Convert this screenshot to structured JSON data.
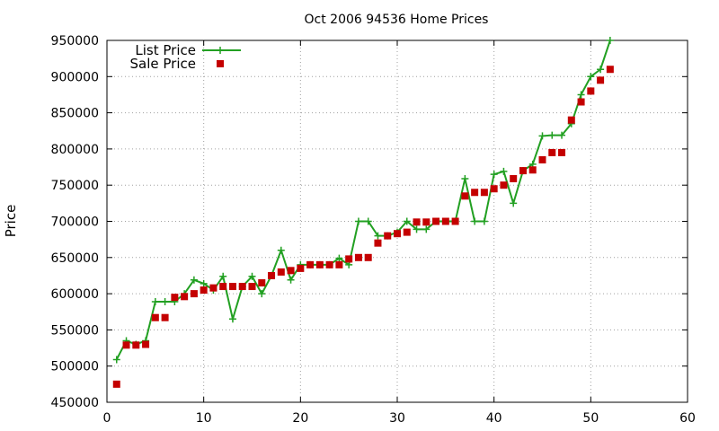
{
  "chart_data": {
    "type": "line",
    "title": "Oct 2006 94536 Home Prices",
    "xlabel": "",
    "ylabel": "Price",
    "xlim": [
      0,
      60
    ],
    "ylim": [
      450000,
      950000
    ],
    "xticks": [
      0,
      10,
      20,
      30,
      40,
      50,
      60
    ],
    "yticks": [
      450000,
      500000,
      550000,
      600000,
      650000,
      700000,
      750000,
      800000,
      850000,
      900000,
      950000
    ],
    "grid": true,
    "legend": "top-left",
    "series": [
      {
        "name": "List Price",
        "style": "line+cross",
        "color": "#22a022",
        "x": [
          1,
          2,
          3,
          4,
          5,
          6,
          7,
          8,
          9,
          10,
          11,
          12,
          13,
          14,
          15,
          16,
          17,
          18,
          19,
          20,
          21,
          22,
          23,
          24,
          25,
          26,
          27,
          28,
          29,
          30,
          31,
          32,
          33,
          34,
          35,
          36,
          37,
          38,
          39,
          40,
          41,
          42,
          43,
          44,
          45,
          46,
          47,
          48,
          49,
          50,
          51,
          52
        ],
        "y": [
          509000,
          535000,
          530000,
          535000,
          589000,
          589000,
          589000,
          600000,
          619000,
          614000,
          605000,
          624000,
          565000,
          610000,
          624000,
          600000,
          625000,
          660000,
          619000,
          640000,
          640000,
          640000,
          640000,
          649000,
          640000,
          700000,
          700000,
          680000,
          680000,
          685000,
          700000,
          689000,
          689000,
          700000,
          700000,
          700000,
          759000,
          700000,
          700000,
          765000,
          769000,
          725000,
          770000,
          779000,
          818000,
          819000,
          819000,
          835000,
          875000,
          900000,
          910000,
          950000
        ]
      },
      {
        "name": "Sale Price",
        "style": "points",
        "color": "#c40000",
        "x": [
          1,
          2,
          3,
          4,
          5,
          6,
          7,
          8,
          9,
          10,
          11,
          12,
          13,
          14,
          15,
          16,
          17,
          18,
          19,
          20,
          21,
          22,
          23,
          24,
          25,
          26,
          27,
          28,
          29,
          30,
          31,
          32,
          33,
          34,
          35,
          36,
          37,
          38,
          39,
          40,
          41,
          42,
          43,
          44,
          45,
          46,
          47,
          48,
          49,
          50,
          51,
          52
        ],
        "y": [
          475000,
          529000,
          529000,
          530000,
          567000,
          567000,
          595000,
          596000,
          600000,
          605000,
          608000,
          610000,
          610000,
          610000,
          610000,
          615000,
          625000,
          630000,
          632000,
          635000,
          640000,
          640000,
          640000,
          640000,
          648000,
          650000,
          650000,
          670000,
          680000,
          683000,
          685000,
          699000,
          699000,
          700000,
          700000,
          700000,
          735000,
          740000,
          740000,
          745000,
          750000,
          759000,
          770000,
          771000,
          785000,
          795000,
          795000,
          840000,
          865000,
          880000,
          895000,
          910000
        ]
      }
    ]
  }
}
